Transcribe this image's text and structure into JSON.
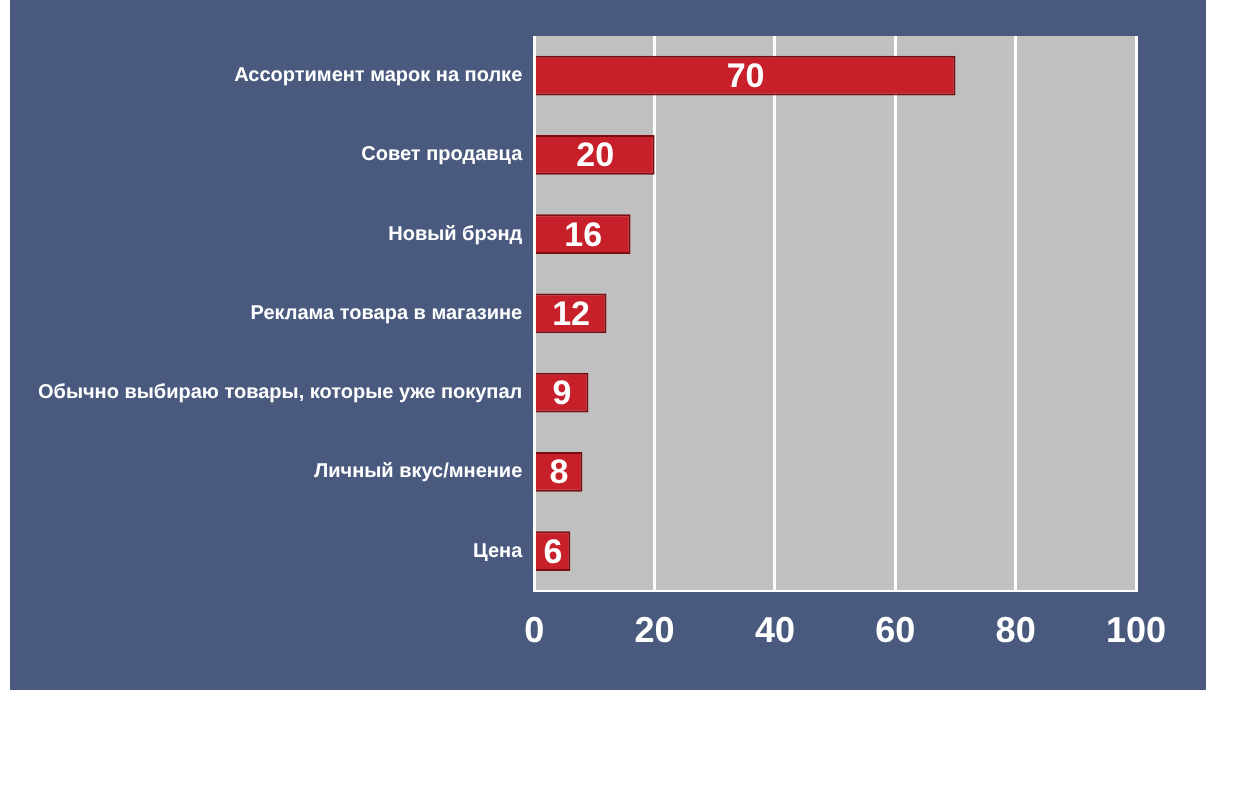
{
  "chart_data": {
    "type": "bar",
    "orientation": "horizontal",
    "categories": [
      "Ассортимент марок на полке",
      "Совет продавца",
      "Новый брэнд",
      "Реклама товара в магазине",
      "Обычно выбираю товары, которые уже покупал",
      "Личный вкус/мнение",
      "Цена"
    ],
    "values": [
      70,
      20,
      16,
      12,
      9,
      8,
      6
    ],
    "color": "#c8202a",
    "xlim": [
      0,
      100
    ],
    "xticks": [
      0,
      20,
      40,
      60,
      80,
      100
    ],
    "grid": "x",
    "data_labels": true,
    "legend": false
  }
}
